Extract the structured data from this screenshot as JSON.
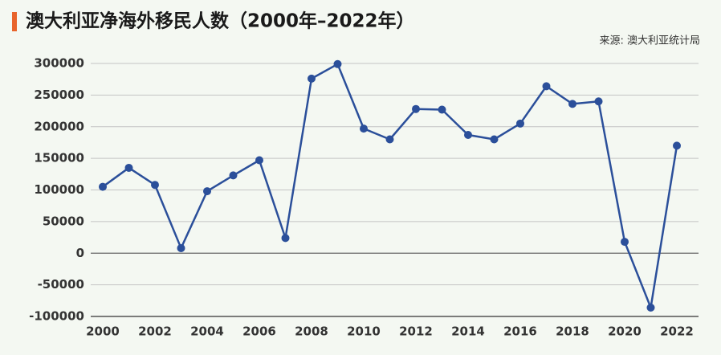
{
  "chart_data": {
    "type": "line",
    "title": "澳大利亚净海外移民人数（2000年–2022年）",
    "source": "来源: 澳大利亚统计局",
    "x": [
      2000,
      2001,
      2002,
      2003,
      2004,
      2005,
      2006,
      2007,
      2008,
      2009,
      2010,
      2011,
      2012,
      2013,
      2014,
      2015,
      2016,
      2017,
      2018,
      2019,
      2020,
      2021,
      2022
    ],
    "series": [
      {
        "color": "#2b4f9a",
        "values": [
          105000,
          135000,
          108000,
          8000,
          98000,
          123000,
          147000,
          24000,
          276000,
          299000,
          197000,
          180000,
          228000,
          227000,
          187000,
          180000,
          205000,
          264000,
          236000,
          240000,
          18000,
          -86000,
          170000
        ]
      }
    ],
    "xlim": [
      2000,
      2022
    ],
    "xticks": [
      2000,
      2002,
      2004,
      2006,
      2008,
      2010,
      2012,
      2014,
      2016,
      2018,
      2020,
      2022
    ],
    "ylim": [
      -100000,
      300000
    ],
    "yticks": [
      -100000,
      -50000,
      0,
      50000,
      100000,
      150000,
      200000,
      250000,
      300000
    ],
    "grid": true
  }
}
